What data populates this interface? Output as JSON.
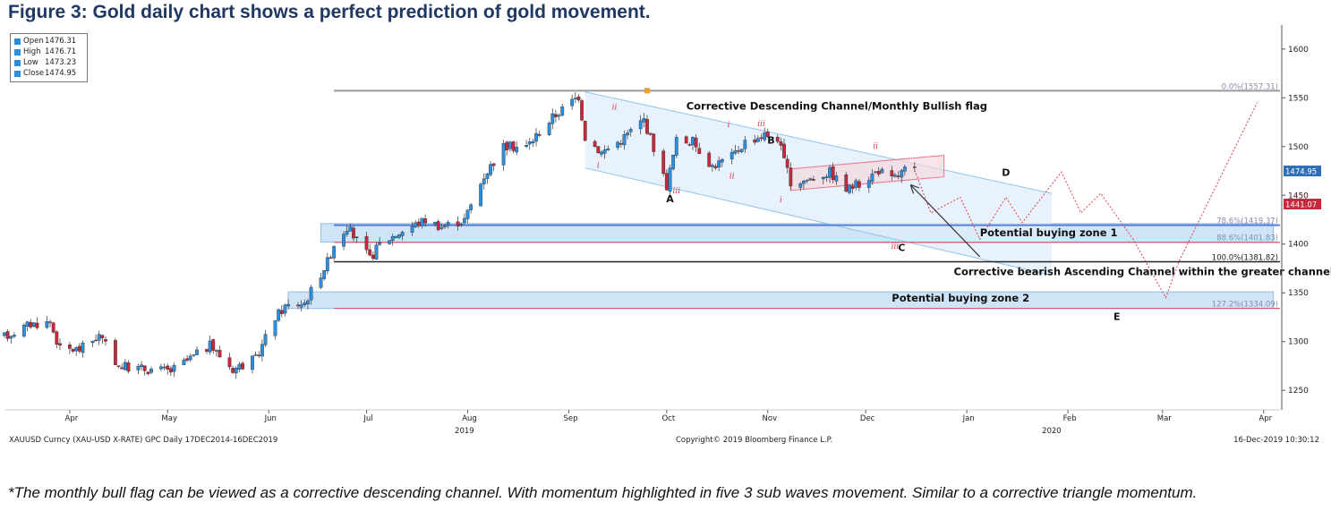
{
  "figure_title": "Figure 3: Gold daily chart shows a perfect prediction of gold movement.",
  "caption": "*The monthly bull flag can be viewed as a corrective descending channel. With momentum highlighted in five 3 sub waves movement. Similar to a corrective triangle momentum.",
  "ohlc": [
    {
      "label": "Open",
      "value": "1476.31"
    },
    {
      "label": "High",
      "value": "1476.71"
    },
    {
      "label": "Low",
      "value": "1473.23"
    },
    {
      "label": "Close",
      "value": "1474.95"
    }
  ],
  "footer": {
    "left": "XAUUSD Curncy (XAU-USD X-RATE) GPC  Daily 17DEC2014-16DEC2019",
    "center": "Copyright© 2019 Bloomberg Finance L.P.",
    "right": "16-Dec-2019 10:30:12"
  },
  "colors": {
    "title": "#1f3864",
    "up_candle": "#2b8fe0",
    "down_candle": "#c8283c",
    "zone_fill": "#cfe4f7",
    "channel_fill": "#dfeefb",
    "flag_fill": "#f7d8e0",
    "projection": "#e03c4c"
  },
  "chart_data": {
    "type": "candlestick",
    "instrument": "XAUUSD Curncy (XAU-USD X-RATE) GPC",
    "y_ticks": [
      1250,
      1300,
      1350,
      1400,
      1450,
      1500,
      1550,
      1600
    ],
    "y_range": [
      1230,
      1620
    ],
    "x_range": [
      "2019-03-12",
      "2020-04-06"
    ],
    "x_month_labels": [
      {
        "label": "Apr",
        "date": "2019-04-01"
      },
      {
        "label": "May",
        "date": "2019-05-01"
      },
      {
        "label": "Jun",
        "date": "2019-06-01"
      },
      {
        "label": "Jul",
        "date": "2019-07-01"
      },
      {
        "label": "Aug",
        "date": "2019-08-01"
      },
      {
        "label": "Sep",
        "date": "2019-09-01"
      },
      {
        "label": "Oct",
        "date": "2019-10-01"
      },
      {
        "label": "Nov",
        "date": "2019-11-01"
      },
      {
        "label": "Dec",
        "date": "2019-12-01"
      },
      {
        "label": "Jan",
        "date": "2020-01-01"
      },
      {
        "label": "Feb",
        "date": "2020-02-01"
      },
      {
        "label": "Mar",
        "date": "2020-03-01"
      },
      {
        "label": "Apr",
        "date": "2020-04-01"
      }
    ],
    "x_year_labels": [
      {
        "label": "2019",
        "date": "2019-07-31"
      },
      {
        "label": "2020",
        "date": "2020-01-27"
      }
    ],
    "price_path": [
      [
        "2019-03-12",
        1305
      ],
      [
        "2019-03-20",
        1318
      ],
      [
        "2019-03-26",
        1320
      ],
      [
        "2019-03-29",
        1292
      ],
      [
        "2019-04-04",
        1292
      ],
      [
        "2019-04-10",
        1306
      ],
      [
        "2019-04-16",
        1275
      ],
      [
        "2019-04-24",
        1272
      ],
      [
        "2019-05-02",
        1270
      ],
      [
        "2019-05-09",
        1285
      ],
      [
        "2019-05-14",
        1296
      ],
      [
        "2019-05-21",
        1272
      ],
      [
        "2019-05-28",
        1282
      ],
      [
        "2019-06-03",
        1325
      ],
      [
        "2019-06-06",
        1336
      ],
      [
        "2019-06-12",
        1340
      ],
      [
        "2019-06-19",
        1382
      ],
      [
        "2019-06-21",
        1400
      ],
      [
        "2019-06-25",
        1418
      ],
      [
        "2019-07-02",
        1385
      ],
      [
        "2019-07-05",
        1400
      ],
      [
        "2019-07-11",
        1412
      ],
      [
        "2019-07-19",
        1425
      ],
      [
        "2019-07-24",
        1418
      ],
      [
        "2019-07-31",
        1425
      ],
      [
        "2019-08-06",
        1470
      ],
      [
        "2019-08-12",
        1500
      ],
      [
        "2019-08-19",
        1500
      ],
      [
        "2019-08-27",
        1530
      ],
      [
        "2019-09-04",
        1552
      ],
      [
        "2019-09-06",
        1510
      ],
      [
        "2019-09-11",
        1494
      ],
      [
        "2019-09-17",
        1507
      ],
      [
        "2019-09-24",
        1528
      ],
      [
        "2019-10-01",
        1460
      ],
      [
        "2019-10-04",
        1506
      ],
      [
        "2019-10-09",
        1505
      ],
      [
        "2019-10-15",
        1480
      ],
      [
        "2019-10-21",
        1490
      ],
      [
        "2019-10-25",
        1505
      ],
      [
        "2019-10-31",
        1512
      ],
      [
        "2019-11-04",
        1509
      ],
      [
        "2019-11-08",
        1462
      ],
      [
        "2019-11-13",
        1466
      ],
      [
        "2019-11-20",
        1474
      ],
      [
        "2019-11-25",
        1456
      ],
      [
        "2019-11-29",
        1462
      ],
      [
        "2019-12-05",
        1476
      ],
      [
        "2019-12-09",
        1466
      ],
      [
        "2019-12-13",
        1476
      ],
      [
        "2019-12-16",
        1475
      ]
    ],
    "last_price": 1474.95,
    "axis_tags": [
      {
        "text": "1474.95",
        "value": 1474.95,
        "color": "#2b6fb8"
      },
      {
        "text": "1441.07",
        "value": 1441.07,
        "color": "#c8283c"
      }
    ],
    "fibonacci_levels": [
      {
        "label": "0.0%(1557.31)",
        "value": 1557.31
      },
      {
        "label": "78.6%(1419.37)",
        "value": 1419.37
      },
      {
        "label": "88.6%(1401.83)",
        "value": 1401.83
      },
      {
        "label": "100.0%(1381.82)",
        "value": 1381.82
      },
      {
        "label": "127.2%(1334.09)",
        "value": 1334.09
      }
    ],
    "zones": [
      {
        "label": "Potential buying zone 1",
        "from": "2019-06-17",
        "to": "2020-04-04",
        "low": 1402,
        "high": 1421
      },
      {
        "label": "Potential buying zone 2",
        "from": "2019-06-07",
        "to": "2020-04-04",
        "low": 1334,
        "high": 1351
      }
    ],
    "descending_channel": {
      "label": "Corrective Descending Channel/Monthly Bullish flag",
      "upper": [
        [
          "2019-09-06",
          1556
        ],
        [
          "2020-01-27",
          1452
        ]
      ],
      "lower": [
        [
          "2019-09-06",
          1478
        ],
        [
          "2020-01-27",
          1368
        ]
      ]
    },
    "flag_channel": {
      "upper": [
        [
          "2019-11-08",
          1477
        ],
        [
          "2019-12-25",
          1491
        ]
      ],
      "lower": [
        [
          "2019-11-08",
          1455
        ],
        [
          "2019-12-25",
          1469
        ]
      ]
    },
    "wave_labels": [
      {
        "text": "A",
        "date": "2019-10-02",
        "value": 1443
      },
      {
        "text": "B",
        "date": "2019-11-02",
        "value": 1503
      },
      {
        "text": "C",
        "date": "2019-12-12",
        "value": 1393
      },
      {
        "text": "D",
        "date": "2020-01-13",
        "value": 1470
      },
      {
        "text": "E",
        "date": "2020-02-16",
        "value": 1322
      }
    ],
    "sub_wave_labels": [
      {
        "text": "ii",
        "date": "2019-09-15",
        "value": 1538
      },
      {
        "text": "i",
        "date": "2019-09-10",
        "value": 1478
      },
      {
        "text": "iii",
        "date": "2019-10-04",
        "value": 1452
      },
      {
        "text": "i",
        "date": "2019-10-20",
        "value": 1520
      },
      {
        "text": "ii",
        "date": "2019-10-21",
        "value": 1467
      },
      {
        "text": "iii",
        "date": "2019-10-30",
        "value": 1521
      },
      {
        "text": "i",
        "date": "2019-11-05",
        "value": 1443
      },
      {
        "text": "ii",
        "date": "2019-12-04",
        "value": 1498
      },
      {
        "text": "iii",
        "date": "2019-12-10",
        "value": 1395
      }
    ],
    "projection_path": [
      [
        "2019-12-16",
        1476
      ],
      [
        "2019-12-21",
        1432
      ],
      [
        "2019-12-30",
        1448
      ],
      [
        "2020-01-05",
        1405
      ],
      [
        "2020-01-13",
        1448
      ],
      [
        "2020-01-18",
        1422
      ],
      [
        "2020-01-30",
        1474
      ],
      [
        "2020-02-05",
        1432
      ],
      [
        "2020-02-11",
        1452
      ],
      [
        "2020-02-21",
        1405
      ],
      [
        "2020-03-02",
        1345
      ],
      [
        "2020-03-06",
        1382
      ],
      [
        "2020-03-30",
        1545
      ]
    ],
    "annotations": [
      {
        "text": "Corrective Descending Channel/Monthly Bullish flag",
        "date": "2019-10-07",
        "value": 1538
      },
      {
        "text": "Potential buying zone 1",
        "date": "2020-01-05",
        "value": 1408
      },
      {
        "text": "Corrective bearish Ascending Channel within the greater channel",
        "date": "2019-12-28",
        "value": 1368
      },
      {
        "text": "Potential buying zone 2",
        "date": "2019-12-09",
        "value": 1341
      }
    ],
    "arrow": {
      "from": [
        "2020-01-05",
        1387
      ],
      "to": [
        "2019-12-15",
        1460
      ]
    }
  }
}
